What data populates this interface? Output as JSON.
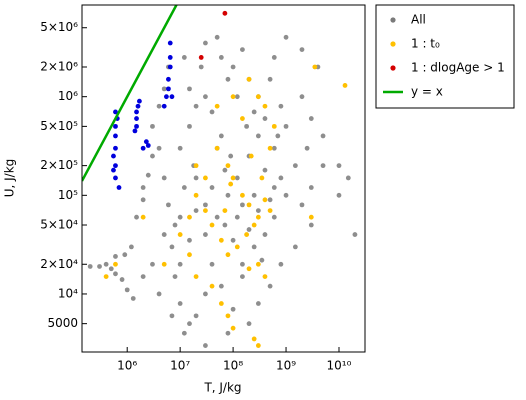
{
  "chart_data": {
    "type": "scatter",
    "xlabel": "T, J/kg",
    "ylabel": "U, J/kg",
    "xlog": true,
    "ylog": true,
    "legend": "upper right outside",
    "xlim": [
      140000,
      31000000000
    ],
    "ylim": [
      2580,
      8500000
    ],
    "xticks": [
      {
        "value": 1000000,
        "label": "10⁶"
      },
      {
        "value": 10000000,
        "label": "10⁷"
      },
      {
        "value": 100000000,
        "label": "10⁸"
      },
      {
        "value": 1000000000,
        "label": "10⁹"
      },
      {
        "value": 10000000000,
        "label": "10¹⁰"
      }
    ],
    "yticks": [
      5000,
      {
        "value": 10000,
        "label": "10⁴"
      },
      {
        "value": 20000,
        "label": "2×10⁴"
      },
      {
        "value": 50000,
        "label": "5×10⁴"
      },
      {
        "value": 100000,
        "label": "10⁵"
      },
      {
        "value": 200000,
        "label": "2×10⁵"
      },
      {
        "value": 500000,
        "label": "5×10⁵"
      },
      {
        "value": 1000000,
        "label": "10⁶"
      },
      {
        "value": 2000000,
        "label": "2×10⁶"
      },
      {
        "value": 5000000,
        "label": "5×10⁶"
      }
    ],
    "series": [
      {
        "name": "All",
        "color": "#7a7a7a",
        "kind": "points",
        "x": [
          200000.0,
          300000.0,
          400000.0,
          500000.0,
          600000.0,
          800000.0,
          1000000.0,
          1300000.0,
          600000.0,
          900000.0,
          1200000.0,
          1500000.0,
          2000000.0,
          2500000.0,
          3000000.0,
          2000000.0,
          3000000.0,
          4000000.0,
          5000000.0,
          6000000.0,
          4000000.0,
          5000000.0,
          6000000.0,
          8000000.0,
          7000000.0,
          8000000.0,
          10000000.0,
          15000000.0,
          12000000.0,
          20000000.0,
          30000000.0,
          10000000.0,
          15000000.0,
          20000000.0,
          12000000.0,
          18000000.0,
          10000000.0,
          15000000.0,
          20000000.0,
          15000000.0,
          25000000.0,
          30000000.0,
          12000000.0,
          50000000.0,
          60000000.0,
          80000000.0,
          100000000.0,
          150000000.0,
          200000000.0,
          300000000.0,
          500000000.0,
          800000000.0,
          1000000000.0,
          2000000000.0,
          3000000000.0,
          5000000000.0,
          4000000000.0,
          2000000000.0,
          1000000000.0,
          600000000.0,
          10000000000.0,
          15000000000.0,
          20000000000.0,
          10000000000.0,
          5000000000.0,
          3000000000.0,
          2000000000.0,
          3000000000.0,
          1500000000.0,
          800000000.0,
          500000000.0,
          300000000.0,
          200000000.0,
          100000000.0,
          60000000.0,
          40000000.0,
          30000000.0,
          50000000.0,
          80000000.0,
          120000000.0,
          200000000.0,
          300000000.0,
          400000000.0,
          600000000.0,
          800000000.0,
          1000000000.0,
          600000000.0,
          400000000.0,
          250000000.0,
          150000000.0,
          100000000.0,
          70000000.0,
          150000000.0,
          250000000.0,
          400000000.0,
          600000000.0,
          300000000.0,
          200000000.0,
          500000000.0,
          120000000.0,
          90000000.0,
          60000000.0,
          40000000.0,
          30000000.0,
          20000000.0,
          30000000.0,
          40000000.0,
          180000000.0,
          250000000.0,
          120000000.0,
          700000000.0,
          1500000000.0,
          2500000000.0,
          10000000.0,
          5000000.0,
          3000000.0,
          2000000.0,
          4000000.0,
          7000000.0,
          30000000.0,
          80000000.0,
          150000000.0,
          350000000.0,
          70000000.0,
          50000000.0
        ],
        "values": [
          19000.0,
          19000.0,
          20000.0,
          18000.0,
          16000.0,
          14000.0,
          11000.0,
          9000.0,
          24000.0,
          25000.0,
          30000.0,
          60000.0,
          90000.0,
          160000.0,
          250000.0,
          120000.0,
          500000.0,
          800000.0,
          1200000.0,
          2000000.0,
          300000.0,
          150000.0,
          80000.0,
          50000.0,
          30000.0,
          15000.0,
          8000.0,
          5000.0,
          4000.0,
          6000.0,
          10000.0,
          20000.0,
          35000.0,
          70000.0,
          120000.0,
          200000.0,
          300000.0,
          500000.0,
          800000.0,
          1200000.0,
          2000000.0,
          3500000.0,
          2500000.0,
          4000000.0,
          2500000.0,
          1500000.0,
          2000000.0,
          3000000.0,
          1500000.0,
          1000000.0,
          1500000.0,
          800000.0,
          500000.0,
          1000000.0,
          600000.0,
          400000.0,
          2000000.0,
          3000000.0,
          4000000.0,
          2500000.0,
          200000.0,
          150000.0,
          40000.0,
          100000.0,
          200000.0,
          120000.0,
          80000.0,
          50000.0,
          30000.0,
          20000.0,
          12000.0,
          8000.0,
          5000.0,
          7000.0,
          12000.0,
          20000.0,
          40000.0,
          60000.0,
          100000.0,
          150000.0,
          250000.0,
          400000.0,
          600000.0,
          300000.0,
          150000.0,
          100000.0,
          60000.0,
          40000.0,
          30000.0,
          20000.0,
          35000.0,
          50000.0,
          80000.0,
          100000.0,
          180000.0,
          120000.0,
          70000.0,
          45000.0,
          90000.0,
          60000.0,
          250000.0,
          400000.0,
          700000.0,
          1000000.0,
          150000.0,
          80000.0,
          120000.0,
          500000.0,
          700000.0,
          1000000.0,
          400000.0,
          200000.0,
          300000.0,
          60000.0,
          40000.0,
          20000.0,
          15000.0,
          10000.0,
          6000.0,
          3000.0,
          4000.0,
          15000.0,
          22000.0,
          180000.0,
          300000.0
        ]
      },
      {
        "name": "1 : t₀",
        "color": "#ffc000",
        "kind": "points",
        "x": [
          20000000.0,
          30000000.0,
          50000000.0,
          80000000.0,
          100000000.0,
          150000000.0,
          200000000.0,
          300000000.0,
          400000000.0,
          500000000.0,
          250000000.0,
          180000000.0,
          120000000.0,
          80000000.0,
          60000000.0,
          40000000.0,
          30000000.0,
          20000000.0,
          15000000.0,
          10000000.0,
          15000000.0,
          20000000.0,
          40000000.0,
          60000000.0,
          80000000.0,
          100000000.0,
          250000000.0,
          300000000.0,
          200000000.0,
          300000000.0,
          400000000.0,
          500000000.0,
          600000000.0,
          400000000.0,
          300000000.0,
          200000000.0,
          100000000.0,
          50000000.0,
          3500000000.0,
          13000000000.0,
          3000000000.0,
          5000000.0,
          600000.0,
          400000.0,
          2000000.0,
          90000000.0,
          150000000.0,
          220000000.0,
          350000000.0,
          70000000.0
        ],
        "values": [
          200000.0,
          150000.0,
          300000.0,
          200000.0,
          150000.0,
          100000.0,
          80000.0,
          60000.0,
          90000.0,
          70000.0,
          50000.0,
          40000.0,
          30000.0,
          25000.0,
          35000.0,
          50000.0,
          70000.0,
          100000.0,
          60000.0,
          40000.0,
          25000.0,
          15000.0,
          12000.0,
          8000.0,
          6000.0,
          4500.0,
          3500.0,
          3000.0,
          18000.0,
          20000.0,
          15000.0,
          300000.0,
          500000.0,
          800000.0,
          1000000.0,
          1500000.0,
          1000000.0,
          800000.0,
          2000000.0,
          1300000.0,
          60000.0,
          20000.0,
          20000.0,
          15000.0,
          60000.0,
          130000.0,
          600000.0,
          250000.0,
          150000.0,
          70000.0
        ]
      },
      {
        "name": "1 : dlogAge > 1",
        "color": "#d40000",
        "kind": "points",
        "x": [
          70000000.0,
          25000000.0
        ],
        "values": [
          7000000.0,
          2500000.0
        ]
      },
      {
        "kind": "points",
        "color": "#0000dd",
        "x": [
          600000.0,
          600000.0,
          600000.0,
          600000.0,
          600000.0,
          600000.0,
          550000.0,
          550000.0,
          700000.0,
          650000.0,
          1500000.0,
          1500000.0,
          1500000.0,
          1600000.0,
          1700000.0,
          1400000.0,
          2000000.0,
          2300000.0,
          2500000.0,
          5000000.0,
          5500000.0,
          6000000.0,
          6000000.0,
          6500000.0,
          6500000.0,
          6500000.0,
          7000000.0
        ],
        "values": [
          150000.0,
          200000.0,
          300000.0,
          400000.0,
          500000.0,
          700000.0,
          250000.0,
          180000.0,
          120000.0,
          600000.0,
          500000.0,
          600000.0,
          700000.0,
          800000.0,
          900000.0,
          450000.0,
          300000.0,
          350000.0,
          320000.0,
          800000.0,
          1000000.0,
          1200000.0,
          1500000.0,
          2000000.0,
          2500000.0,
          3500000.0,
          1000000.0
        ]
      },
      {
        "name": "y = x",
        "color": "#00aa00",
        "kind": "line",
        "x": [
          140000,
          8500000
        ],
        "values": [
          140000,
          8500000
        ]
      }
    ]
  }
}
